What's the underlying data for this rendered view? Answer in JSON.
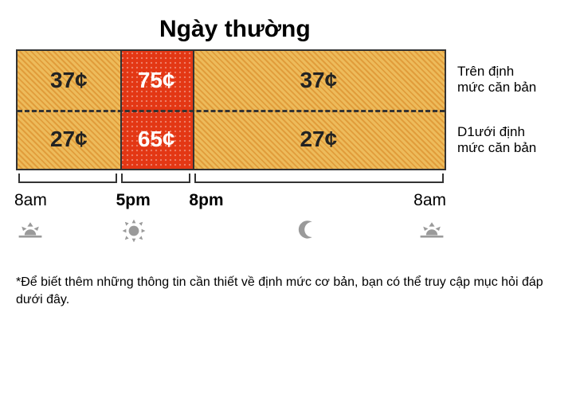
{
  "title": "Ngày thường",
  "rows": {
    "above": {
      "label": "Trên định\nmức căn bản"
    },
    "below": {
      "label": "D1ưới định\nmức căn bản"
    }
  },
  "periods": [
    {
      "start": "8am",
      "end": "5pm",
      "widthPct": 24,
      "style": "hatch-orange",
      "above": "37¢",
      "below": "27¢",
      "textColor": "#222",
      "startBold": false,
      "icon": "sunrise"
    },
    {
      "start": "5pm",
      "end": "8pm",
      "widthPct": 17,
      "style": "dot-red",
      "above": "75¢",
      "below": "65¢",
      "textColor": "#fff",
      "startBold": true,
      "icon": "sun"
    },
    {
      "start": "8pm",
      "end": "8am",
      "widthPct": 59,
      "style": "hatch-orange",
      "above": "37¢",
      "below": "27¢",
      "textColor": "#222",
      "startBold": true,
      "icon": "moon"
    }
  ],
  "endTime": {
    "label": "8am",
    "bold": false,
    "icon": "sunrise"
  },
  "colors": {
    "orangeBase": "#edbb5b",
    "orangeHatch": "#d27814",
    "redBase": "#e33714",
    "border": "#333333",
    "iconGray": "#9a9a9a"
  },
  "layout": {
    "gridWidthPx": 540,
    "gridHeightPx": 152
  },
  "footnote": "*Để biết thêm những thông tin cần thiết về định mức cơ bản, bạn có thể truy cập mục hỏi đáp dưới đây."
}
